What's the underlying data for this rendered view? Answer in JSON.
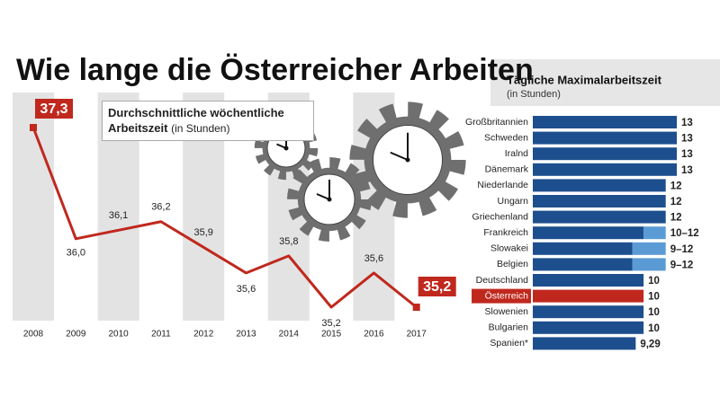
{
  "title": "Wie lange die Österreicher Arbeiten",
  "chart_data": [
    {
      "type": "line",
      "title": "Durchschnittliche wöchentliche Arbeitszeit",
      "unit": "(in Stunden)",
      "categories": [
        "2008",
        "2009",
        "2010",
        "2011",
        "2012",
        "2013",
        "2014",
        "2015",
        "2016",
        "2017"
      ],
      "values": [
        37.3,
        36.0,
        36.1,
        36.2,
        35.9,
        35.6,
        35.8,
        35.2,
        35.6,
        35.2
      ],
      "value_labels": [
        "37,3",
        "36,0",
        "36,1",
        "36,2",
        "35,9",
        "35,6",
        "35,8",
        "35,2",
        "35,6",
        "35,2"
      ],
      "color": "#c0281e"
    },
    {
      "type": "hbar",
      "title": "Tägliche Maximalarbeitszeit",
      "unit": "(in Stunden)",
      "categories": [
        "Großbritannien",
        "Schweden",
        "Iralnd",
        "Dänemark",
        "Niederlande",
        "Ungarn",
        "Griechenland",
        "Frankreich",
        "Slowakei",
        "Belgien",
        "Deutschland",
        "Österreich",
        "Slowenien",
        "Bulgarien",
        "Spanien*"
      ],
      "values": [
        13,
        13,
        13,
        13,
        12,
        12,
        12,
        12,
        12,
        12,
        10,
        10,
        10,
        10,
        9.29
      ],
      "range_low": [
        null,
        null,
        null,
        null,
        null,
        null,
        null,
        10,
        9,
        9,
        null,
        null,
        null,
        null,
        null
      ],
      "value_labels": [
        "13",
        "13",
        "13",
        "13",
        "12",
        "12",
        "12",
        "10–12",
        "9–12",
        "9–12",
        "10",
        "10",
        "10",
        "10",
        "9,29"
      ],
      "color": "#1d4f8e",
      "range_color": "#5b9bd5",
      "highlight_index": 11,
      "highlight_color": "#c0281e"
    }
  ]
}
